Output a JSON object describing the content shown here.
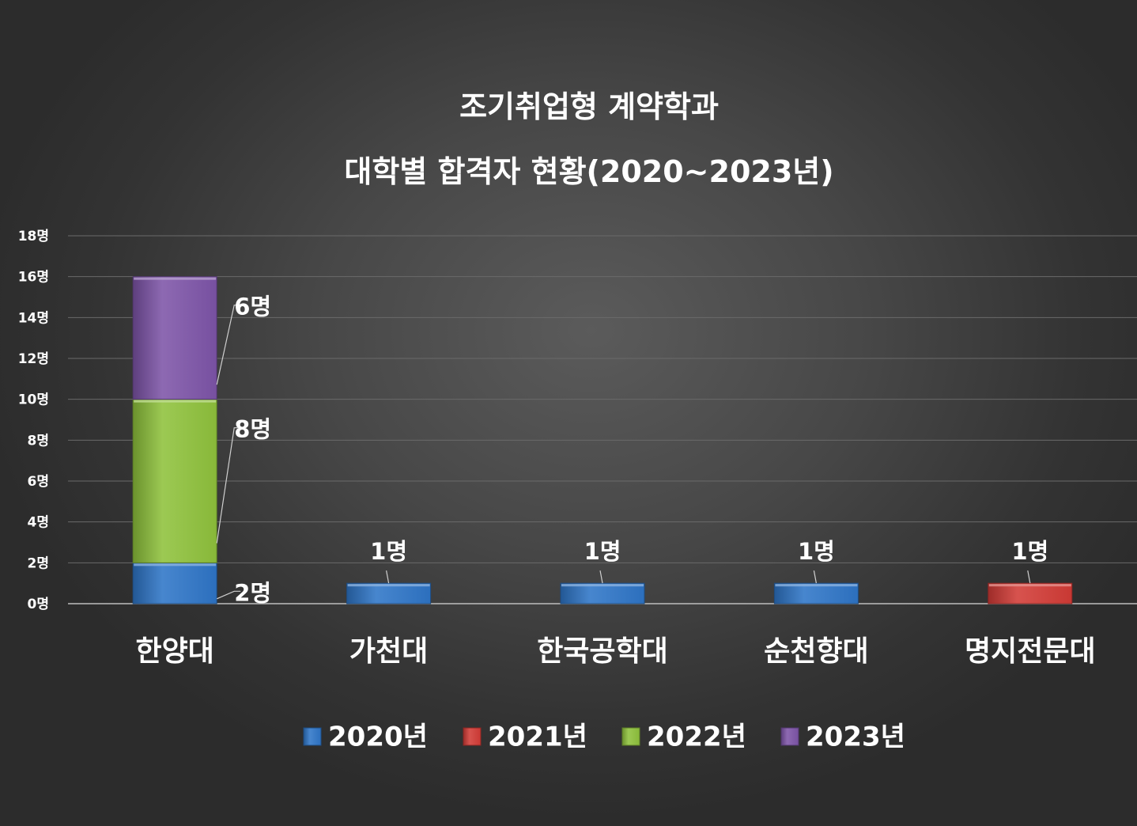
{
  "chart_data": {
    "type": "bar",
    "stacked": true,
    "title": [
      "조기취업형 계약학과",
      "대학별 합격자 현황(2020~2023년)"
    ],
    "categories": [
      "한양대",
      "가천대",
      "한국공학대",
      "순천향대",
      "명지전문대"
    ],
    "series": [
      {
        "name": "2020년",
        "color": "#2e75c7",
        "values": [
          2,
          1,
          1,
          1,
          0
        ],
        "labels": [
          "2명",
          "1명",
          "1명",
          "1명",
          ""
        ]
      },
      {
        "name": "2021년",
        "color": "#d23b36",
        "values": [
          0,
          0,
          0,
          0,
          1
        ],
        "labels": [
          "",
          "",
          "",
          "",
          "1명"
        ]
      },
      {
        "name": "2022년",
        "color": "#8fc23c",
        "values": [
          8,
          0,
          0,
          0,
          0
        ],
        "labels": [
          "8명",
          "",
          "",
          "",
          ""
        ]
      },
      {
        "name": "2023년",
        "color": "#7d54a8",
        "values": [
          6,
          0,
          0,
          0,
          0
        ],
        "labels": [
          "6명",
          "",
          "",
          "",
          ""
        ]
      }
    ],
    "yticks": [
      0,
      2,
      4,
      6,
      8,
      10,
      12,
      14,
      16,
      18
    ],
    "ytick_labels": [
      "0명",
      "2명",
      "4명",
      "6명",
      "8명",
      "10명",
      "12명",
      "14명",
      "16명",
      "18명"
    ],
    "ylim": [
      0,
      18
    ],
    "grid": true,
    "legend": "bottom"
  }
}
